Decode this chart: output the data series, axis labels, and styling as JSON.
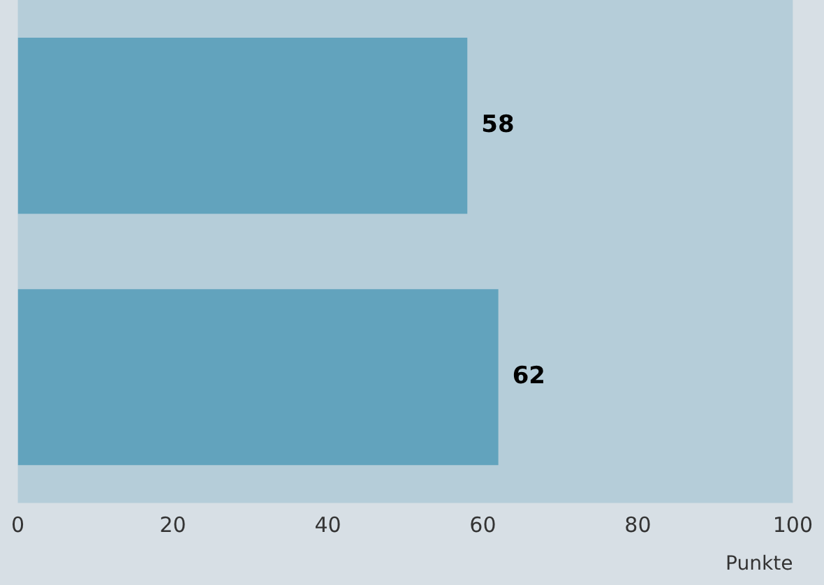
{
  "chart_data": {
    "type": "bar",
    "orientation": "horizontal",
    "categories": [
      null,
      null
    ],
    "series": [
      {
        "color": "#62a3bd",
        "values": [
          58,
          62
        ]
      }
    ],
    "xlim": [
      0,
      100
    ],
    "xticks": [
      0,
      20,
      40,
      60,
      80,
      100
    ],
    "xlabel": "Punkte",
    "data_labels": true,
    "grid": false,
    "legend": false
  }
}
